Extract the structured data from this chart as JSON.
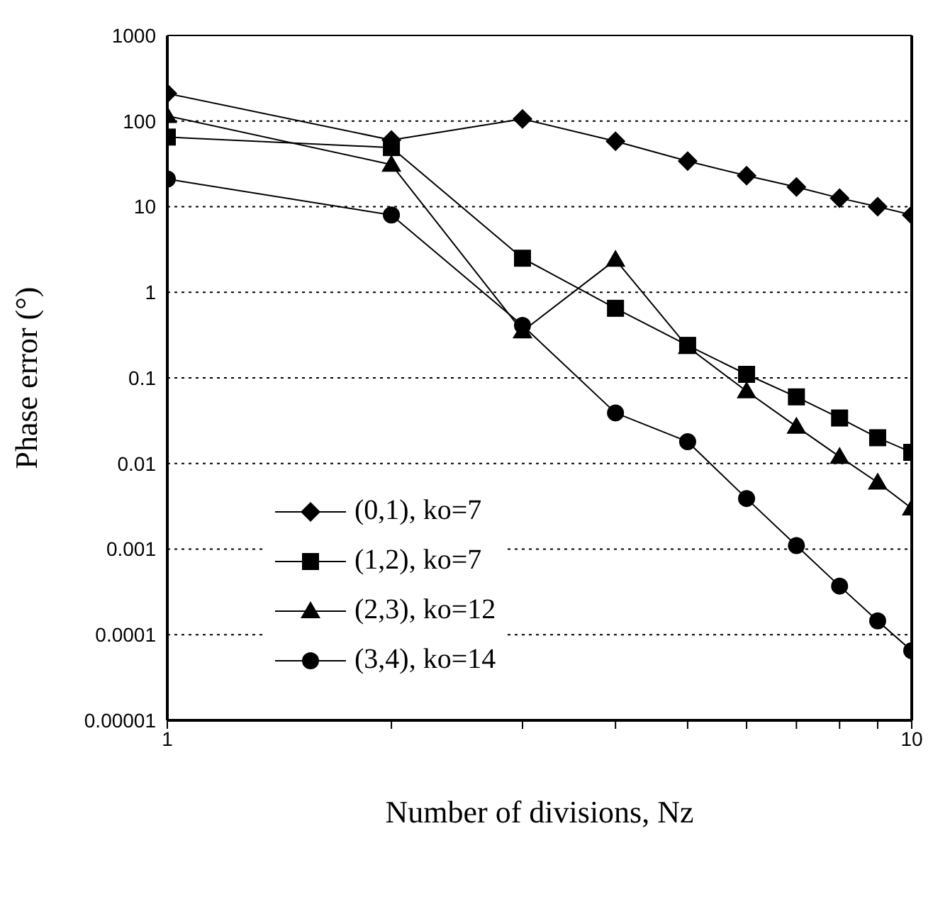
{
  "chart_data": {
    "type": "line",
    "xlabel": "Number of divisions, Nz",
    "ylabel": "Phase error (°)",
    "log": "xy",
    "grid": "y",
    "legend": "left",
    "x": [
      1,
      2,
      3,
      4,
      5,
      6,
      7,
      8,
      9,
      10
    ],
    "xlim": [
      1,
      10
    ],
    "xticks": [
      1,
      {
        "value": 2,
        "label": null
      },
      {
        "value": 3,
        "label": null
      },
      {
        "value": 4,
        "label": null
      },
      {
        "value": 5,
        "label": null
      },
      {
        "value": 6,
        "label": null
      },
      {
        "value": 7,
        "label": null
      },
      {
        "value": 8,
        "label": null
      },
      {
        "value": 9,
        "label": null
      },
      10
    ],
    "ylim": [
      1e-05,
      1000
    ],
    "yticks": [
      {
        "value": 1e-05,
        "label": "0.00001"
      },
      0.0001,
      0.001,
      0.01,
      0.1,
      1,
      10,
      100,
      1000
    ],
    "series": [
      {
        "name": "(0,1), ko=7",
        "color": "#000000",
        "marker": "diamond",
        "values": [
          210,
          60,
          106,
          58,
          34,
          23,
          17,
          12.6,
          10,
          8
        ]
      },
      {
        "name": "(1,2), ko=7",
        "color": "#000000",
        "marker": "square",
        "values": [
          65,
          49,
          2.5,
          0.65,
          0.24,
          0.11,
          0.06,
          0.034,
          0.02,
          0.0135
        ]
      },
      {
        "name": "(2,3), ko=12",
        "color": "#000000",
        "marker": "triangle",
        "values": [
          115,
          31,
          0.35,
          2.4,
          0.23,
          0.07,
          0.027,
          0.012,
          0.006,
          0.003
        ]
      },
      {
        "name": "(3,4), ko=14",
        "color": "#000000",
        "marker": "circle",
        "values": [
          21,
          8,
          0.41,
          0.039,
          0.018,
          0.0039,
          0.0011,
          0.00037,
          0.000145,
          6.5e-05
        ]
      }
    ]
  }
}
